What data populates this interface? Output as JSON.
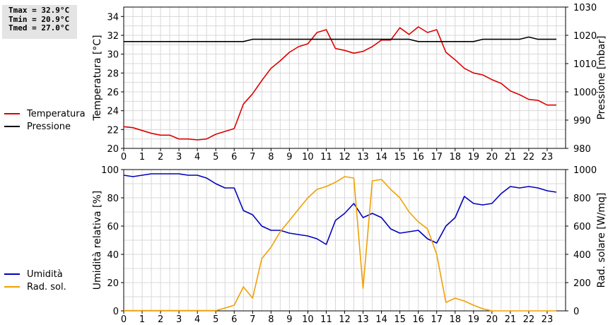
{
  "stats": {
    "tmax": "Tmax = 32.9°C",
    "tmin": "Tmin = 20.9°C",
    "tmed": "Tmed = 27.0°C"
  },
  "legend_top": [
    {
      "label": "Temperatura",
      "color": "#dd0000"
    },
    {
      "label": "Pressione",
      "color": "#000000"
    }
  ],
  "legend_bottom": [
    {
      "label": "Umidità",
      "color": "#0000bb"
    },
    {
      "label": "Rad. sol.",
      "color": "#f0a000"
    }
  ],
  "chart_data": [
    {
      "type": "line",
      "xlim": [
        0,
        24
      ],
      "x_ticks": [
        0,
        1,
        2,
        3,
        4,
        5,
        6,
        7,
        8,
        9,
        10,
        11,
        12,
        13,
        14,
        15,
        16,
        17,
        18,
        19,
        20,
        21,
        22,
        23
      ],
      "grid": true,
      "ylabel": "Temperatura [°C]",
      "ylim": [
        20,
        35
      ],
      "y_ticks": [
        20,
        22,
        24,
        26,
        28,
        30,
        32,
        34
      ],
      "y2label": "Pressione [mbar]",
      "y2lim": [
        980,
        1030
      ],
      "y2_ticks": [
        980,
        990,
        1000,
        1010,
        1020,
        1030
      ],
      "series": [
        {
          "name": "Temperatura",
          "axis": "left",
          "color": "#dd0000",
          "x": [
            0,
            0.5,
            1,
            1.5,
            2,
            2.5,
            3,
            3.5,
            4,
            4.5,
            5,
            5.5,
            6,
            6.5,
            7,
            7.5,
            8,
            8.5,
            9,
            9.5,
            10,
            10.5,
            11,
            11.5,
            12,
            12.5,
            13,
            13.5,
            14,
            14.5,
            15,
            15.5,
            16,
            16.5,
            17,
            17.5,
            18,
            18.5,
            19,
            19.5,
            20,
            20.5,
            21,
            21.5,
            22,
            22.5,
            23,
            23.5
          ],
          "y": [
            22.3,
            22.2,
            21.9,
            21.6,
            21.4,
            21.4,
            21.0,
            21.0,
            20.9,
            21.0,
            21.5,
            21.8,
            22.1,
            24.7,
            25.8,
            27.2,
            28.5,
            29.3,
            30.2,
            30.8,
            31.1,
            32.3,
            32.6,
            30.6,
            30.4,
            30.1,
            30.3,
            30.8,
            31.5,
            31.5,
            32.8,
            32.1,
            32.9,
            32.3,
            32.6,
            30.2,
            29.4,
            28.5,
            28.0,
            27.8,
            27.3,
            26.9,
            26.1,
            25.7,
            25.2,
            25.1,
            24.6,
            24.6
          ]
        },
        {
          "name": "Pressione",
          "axis": "right",
          "color": "#000000",
          "x": [
            0,
            6.5,
            7,
            15.5,
            16,
            19,
            19.5,
            21.5,
            22,
            22.5,
            23.5
          ],
          "y": [
            1017.8,
            1017.8,
            1018.6,
            1018.6,
            1017.8,
            1017.8,
            1018.6,
            1018.6,
            1019.4,
            1018.6,
            1018.6
          ]
        }
      ]
    },
    {
      "type": "line",
      "xlim": [
        0,
        24
      ],
      "x_ticks": [
        0,
        1,
        2,
        3,
        4,
        5,
        6,
        7,
        8,
        9,
        10,
        11,
        12,
        13,
        14,
        15,
        16,
        17,
        18,
        19,
        20,
        21,
        22,
        23
      ],
      "grid": true,
      "ylabel": "Umidità relativa [%]",
      "ylim": [
        0,
        100
      ],
      "y_ticks": [
        0,
        20,
        40,
        60,
        80,
        100
      ],
      "y2label": "Rad. solare [W/mq]",
      "y2lim": [
        0,
        1000
      ],
      "y2_ticks": [
        0,
        200,
        400,
        600,
        800,
        1000
      ],
      "series": [
        {
          "name": "Umidità",
          "axis": "left",
          "color": "#0000bb",
          "x": [
            0,
            0.5,
            1,
            1.5,
            2,
            2.5,
            3,
            3.5,
            4,
            4.5,
            5,
            5.5,
            6,
            6.5,
            7,
            7.5,
            8,
            8.5,
            9,
            9.5,
            10,
            10.5,
            11,
            11.5,
            12,
            12.5,
            13,
            13.5,
            14,
            14.5,
            15,
            15.5,
            16,
            16.5,
            17,
            17.5,
            18,
            18.5,
            19,
            19.5,
            20,
            20.5,
            21,
            21.5,
            22,
            22.5,
            23,
            23.5
          ],
          "y": [
            96,
            95,
            96,
            97,
            97,
            97,
            97,
            96,
            96,
            94,
            90,
            87,
            87,
            71,
            68,
            60,
            57,
            57,
            55,
            54,
            53,
            51,
            47,
            64,
            69,
            76,
            66,
            69,
            66,
            58,
            55,
            56,
            57,
            51,
            48,
            60,
            66,
            81,
            76,
            75,
            76,
            83,
            88,
            87,
            88,
            87,
            85,
            84
          ]
        },
        {
          "name": "Rad. sol.",
          "axis": "right",
          "color": "#f0a000",
          "x": [
            0,
            1,
            2,
            3,
            4,
            5,
            5.5,
            6,
            6.5,
            7,
            7.5,
            8,
            8.5,
            9,
            9.5,
            10,
            10.5,
            11,
            11.5,
            12,
            12.5,
            13,
            13.5,
            14,
            14.5,
            15,
            15.5,
            16,
            16.5,
            17,
            17.5,
            18,
            18.5,
            19,
            19.5,
            20,
            20.5,
            21,
            22,
            23,
            23.5
          ],
          "y": [
            2,
            2,
            2,
            2,
            2,
            2,
            20,
            40,
            170,
            90,
            370,
            450,
            560,
            640,
            720,
            800,
            860,
            880,
            910,
            950,
            940,
            160,
            920,
            930,
            860,
            800,
            700,
            630,
            580,
            400,
            60,
            90,
            70,
            40,
            15,
            0,
            0,
            0,
            0,
            0,
            0
          ]
        }
      ]
    }
  ]
}
